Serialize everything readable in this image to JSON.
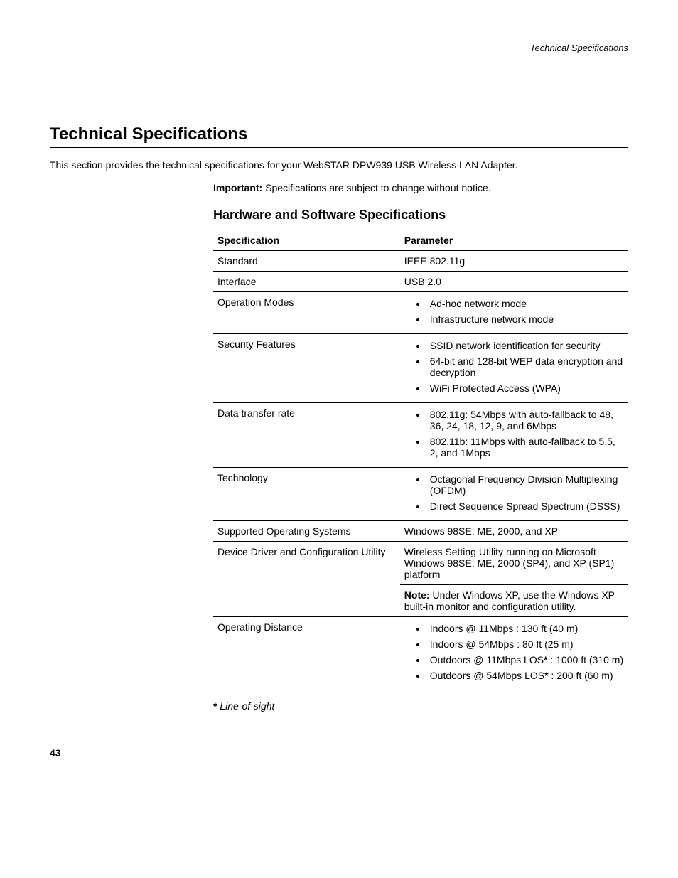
{
  "header_label": "Technical Specifications",
  "section_title": "Technical Specifications",
  "intro_text": "This section provides the technical specifications for your WebSTAR DPW939 USB Wireless LAN Adapter.",
  "important_label": "Important:",
  "important_text": " Specifications are subject to change without notice.",
  "subsection_title": "Hardware and Software Specifications",
  "table": {
    "col_spec": "Specification",
    "col_param": "Parameter",
    "r0": {
      "spec": "Standard",
      "param": "IEEE 802.11g"
    },
    "r1": {
      "spec": "Interface",
      "param": "USB 2.0"
    },
    "r2": {
      "spec": "Operation Modes",
      "b0": "Ad-hoc network mode",
      "b1": "Infrastructure network mode"
    },
    "r3": {
      "spec": "Security Features",
      "b0": "SSID network identification for security",
      "b1": "64-bit and 128-bit WEP data encryption and decryption",
      "b2": "WiFi Protected Access (WPA)"
    },
    "r4": {
      "spec": "Data transfer rate",
      "b0": "802.11g: 54Mbps with auto-fallback to 48, 36, 24, 18, 12, 9, and 6Mbps",
      "b1": "802.11b: 11Mbps with auto-fallback to 5.5, 2, and 1Mbps"
    },
    "r5": {
      "spec": "Technology",
      "b0": "Octagonal Frequency Division Multiplexing (OFDM)",
      "b1": "Direct Sequence Spread Spectrum (DSSS)"
    },
    "r6": {
      "spec": "Supported Operating Systems",
      "param": "Windows 98SE, ME, 2000, and XP"
    },
    "r7": {
      "spec": "Device Driver and Configuration Utility",
      "param": "Wireless Setting Utility running on Microsoft Windows 98SE, ME, 2000 (SP4), and XP (SP1) platform",
      "note_label": "Note:",
      "note_text": " Under Windows XP, use the Windows XP built-in monitor and configuration utility."
    },
    "r8": {
      "spec": "Operating Distance",
      "b0": "Indoors @ 11Mbps : 130 ft (40 m)",
      "b1": "Indoors @ 54Mbps : 80 ft (25 m)",
      "b2_pre": "Outdoors @ 11Mbps LOS",
      "b2_star": "*",
      "b2_post": " : 1000 ft (310 m)",
      "b3_pre": "Outdoors @ 54Mbps LOS",
      "b3_star": "*",
      "b3_post": " : 200 ft (60 m)"
    }
  },
  "footnote_star": "*",
  "footnote_text": " Line-of-sight",
  "page_number": "43"
}
